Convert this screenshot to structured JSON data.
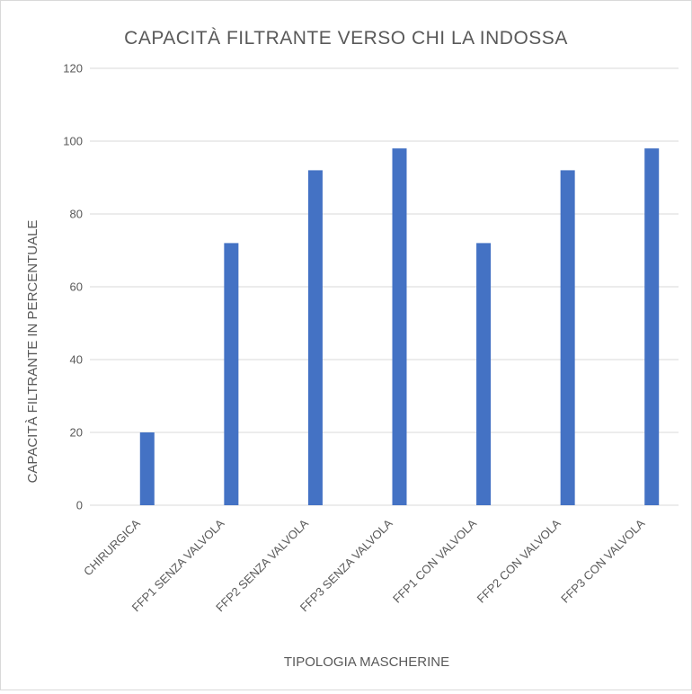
{
  "chart_data": {
    "type": "bar",
    "title": "CAPACITÀ FILTRANTE VERSO CHI LA INDOSSA",
    "xlabel": "TIPOLOGIA MASCHERINE",
    "ylabel": "CAPACITÀ FILTRANTE IN PERCENTUALE",
    "categories": [
      "CHIRURGICA",
      "FFP1 SENZA VALVOLA",
      "FFP2 SENZA VALVOLA",
      "FFP3 SENZA VALVOLA",
      "FFP1 CON VALVOLA",
      "FFP2 CON VALVOLA",
      "FFP3 CON VALVOLA"
    ],
    "values": [
      20,
      72,
      92,
      98,
      72,
      92,
      98
    ],
    "ylim": [
      0,
      120
    ],
    "yticks": [
      "0",
      "20",
      "40",
      "60",
      "80",
      "100",
      "120"
    ],
    "grid": true,
    "bar_color": "#4472c4"
  }
}
